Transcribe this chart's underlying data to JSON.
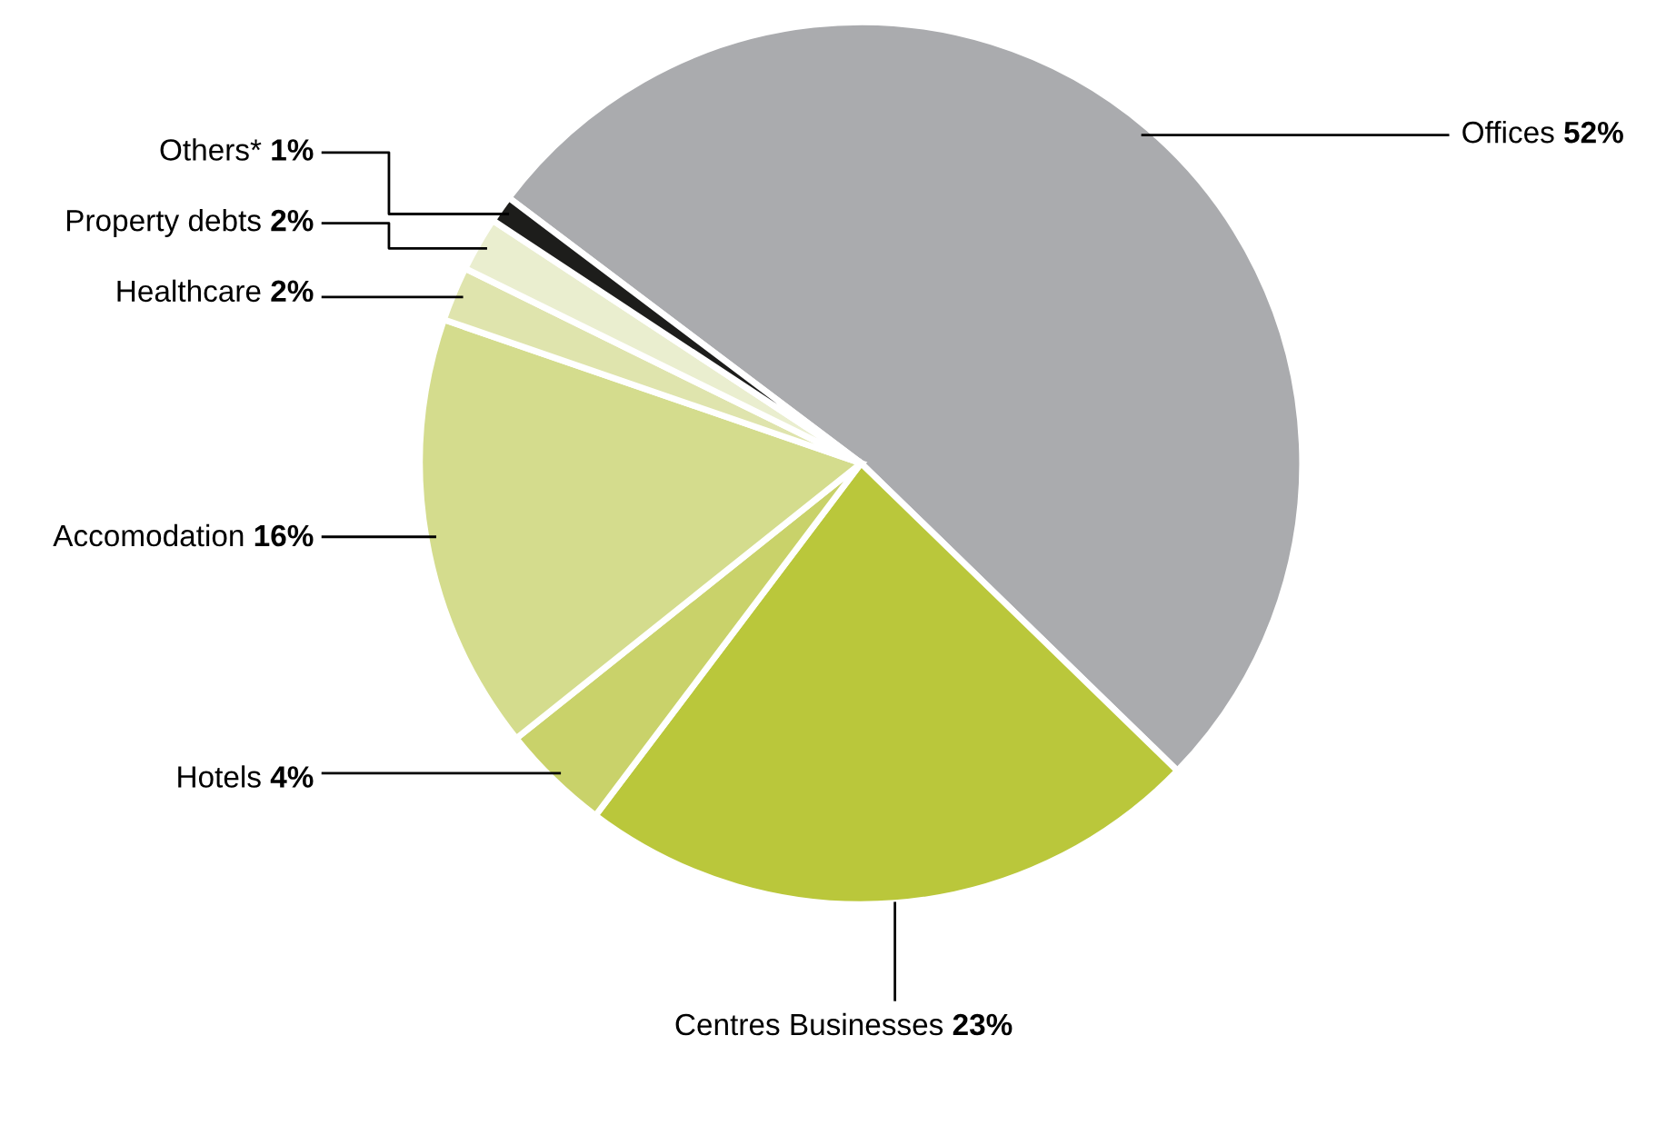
{
  "chart_data": {
    "type": "pie",
    "categories": [
      "Offices",
      "Centres Businesses",
      "Hotels",
      "Accomodation",
      "Healthcare",
      "Property debts",
      "Others*"
    ],
    "values": [
      52,
      23,
      4,
      16,
      2,
      2,
      1
    ],
    "value_labels": [
      "52%",
      "23%",
      "4%",
      "16%",
      "2%",
      "2%",
      "1%"
    ],
    "colors": [
      "#aaabae",
      "#bac73b",
      "#c9d26a",
      "#d4dc8d",
      "#dfe4ad",
      "#eaeecf",
      "#1d1d1b"
    ]
  }
}
